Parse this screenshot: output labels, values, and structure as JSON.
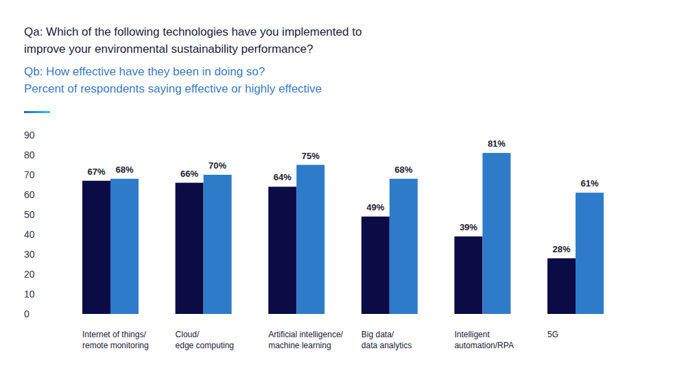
{
  "chart_data": {
    "type": "bar",
    "title": "Qa: Which of the following technologies have you implemented to\nimprove your environmental sustainability performance?",
    "subtitle": "Qb: How effective have they been in doing so?\nPercent of respondents saying effective or highly effective",
    "categories": [
      "Internet of things/\nremote monitoring",
      "Cloud/\nedge computing",
      "Artificial intelligence/\nmachine learning",
      "Big data/\ndata analytics",
      "Intelligent\nautomation/RPA",
      "5G"
    ],
    "series": [
      {
        "color": "#0b0b45",
        "values": [
          67,
          66,
          64,
          49,
          39,
          28
        ],
        "value_labels": [
          "67%",
          "66%",
          "64%",
          "49%",
          "39%",
          "28%"
        ]
      },
      {
        "color": "#2e7bca",
        "values": [
          68,
          70,
          75,
          68,
          81,
          61
        ],
        "value_labels": [
          "68%",
          "70%",
          "75%",
          "68%",
          "81%",
          "61%"
        ]
      }
    ],
    "ylim": [
      0,
      90
    ],
    "yticks": [
      0,
      10,
      20,
      30,
      40,
      50,
      60,
      70,
      80,
      90
    ],
    "grid": false,
    "data_labels": true
  }
}
